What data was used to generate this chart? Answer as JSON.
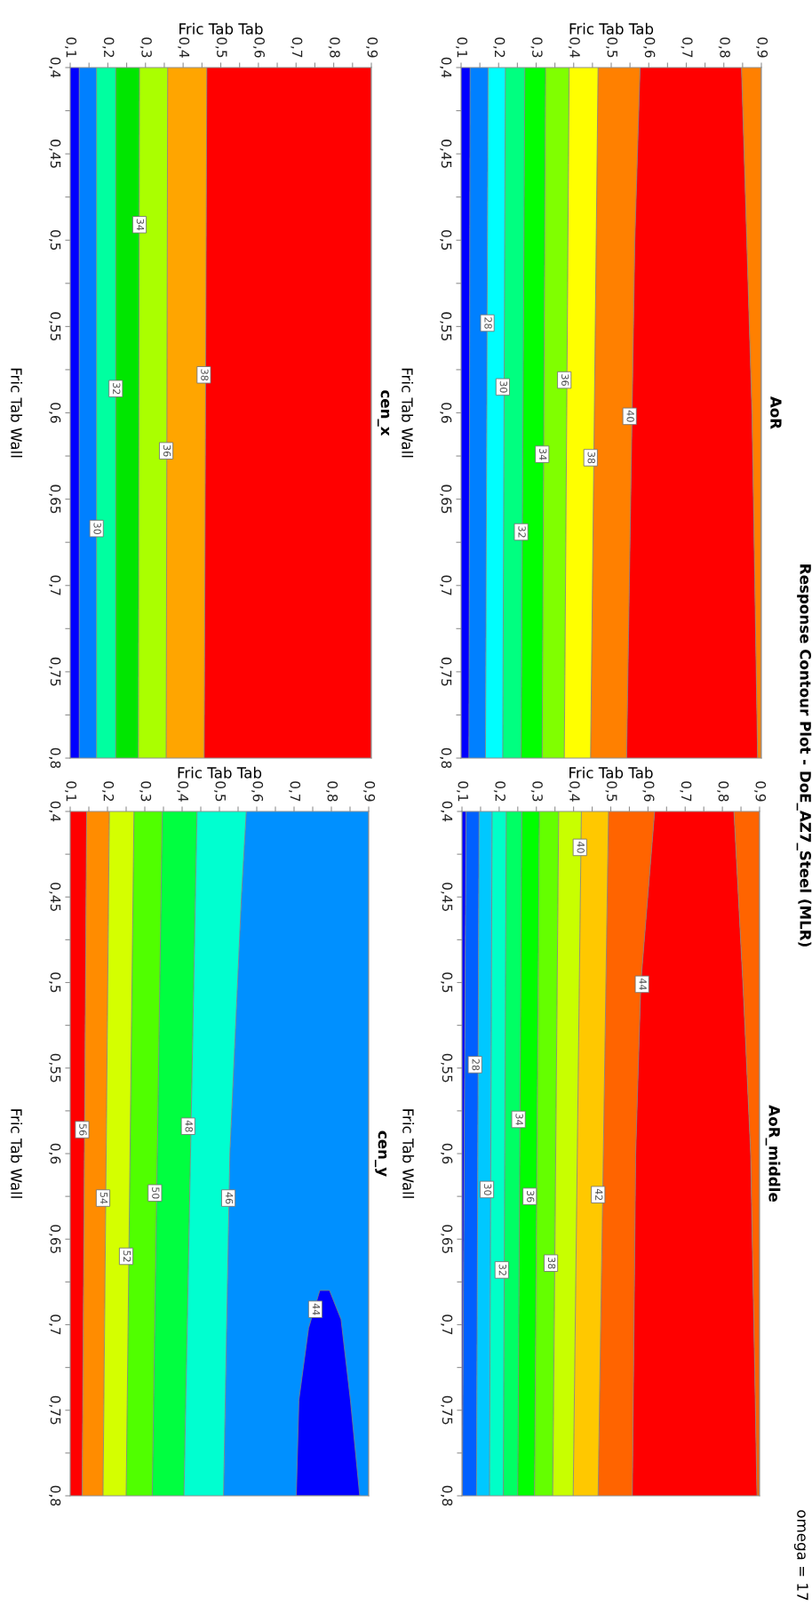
{
  "chart_data": [
    {
      "type": "area",
      "orientation": "horizontal",
      "title": "AoR",
      "xlabel": "Fric Tab Tab",
      "ylabel": "Fric Tab Wall",
      "xlim": [
        0.1,
        0.9
      ],
      "ylim": [
        0.8,
        0.4
      ],
      "xticks": [
        {
          "value": 0.1,
          "label": "0,1"
        },
        {
          "value": 0.15,
          "label": null
        },
        {
          "value": 0.2,
          "label": "0,2"
        },
        {
          "value": 0.25,
          "label": null
        },
        {
          "value": 0.3,
          "label": "0,3"
        },
        {
          "value": 0.35,
          "label": null
        },
        {
          "value": 0.4,
          "label": "0,4"
        },
        {
          "value": 0.45,
          "label": null
        },
        {
          "value": 0.5,
          "label": "0,5"
        },
        {
          "value": 0.55,
          "label": null
        },
        {
          "value": 0.6,
          "label": "0,6"
        },
        {
          "value": 0.65,
          "label": null
        },
        {
          "value": 0.7,
          "label": "0,7"
        },
        {
          "value": 0.75,
          "label": null
        },
        {
          "value": 0.8,
          "label": "0,8"
        },
        {
          "value": 0.85,
          "label": null
        },
        {
          "value": 0.9,
          "label": "0,9"
        }
      ],
      "yticks": [
        {
          "value": 0.4,
          "label": "0,4"
        },
        {
          "value": 0.425,
          "label": null
        },
        {
          "value": 0.45,
          "label": "0,45"
        },
        {
          "value": 0.475,
          "label": null
        },
        {
          "value": 0.5,
          "label": "0,5"
        },
        {
          "value": 0.525,
          "label": null
        },
        {
          "value": 0.55,
          "label": "0,55"
        },
        {
          "value": 0.575,
          "label": null
        },
        {
          "value": 0.6,
          "label": "0,6"
        },
        {
          "value": 0.625,
          "label": null
        },
        {
          "value": 0.65,
          "label": "0,65"
        },
        {
          "value": 0.675,
          "label": null
        },
        {
          "value": 0.7,
          "label": "0,7"
        },
        {
          "value": 0.725,
          "label": null
        },
        {
          "value": 0.75,
          "label": "0,75"
        },
        {
          "value": 0.775,
          "label": null
        },
        {
          "value": 0.8,
          "label": "0,8"
        }
      ],
      "series": [
        {
          "color": "#0000ff",
          "x": [
            0.4,
            0.8
          ],
          "values": [
            0.124,
            0.121
          ]
        },
        {
          "color": "#0080ff",
          "x": [
            0.4,
            0.8
          ],
          "values": [
            0.172,
            0.165
          ]
        },
        {
          "color": "#00ffff",
          "x": [
            0.4,
            0.8
          ],
          "values": [
            0.218,
            0.211
          ]
        },
        {
          "color": "#00ff80",
          "x": [
            0.4,
            0.8
          ],
          "values": [
            0.27,
            0.26
          ]
        },
        {
          "color": "#00ff00",
          "x": [
            0.4,
            0.8
          ],
          "values": [
            0.325,
            0.316
          ]
        },
        {
          "color": "#80ff00",
          "x": [
            0.4,
            0.8
          ],
          "values": [
            0.388,
            0.375
          ]
        },
        {
          "color": "#ffff00",
          "x": [
            0.4,
            0.8
          ],
          "values": [
            0.465,
            0.445
          ]
        },
        {
          "color": "#ff8000",
          "x": [
            0.4,
            0.5,
            0.8
          ],
          "values": [
            0.577,
            0.563,
            0.541
          ]
        },
        {
          "color": "#ff0000",
          "x": [
            0.4,
            0.5,
            0.6,
            0.8
          ],
          "values": [
            0.847,
            0.861,
            0.875,
            0.89
          ]
        },
        {
          "color": "#ff8000",
          "x": [
            0.4,
            0.5,
            0.6,
            0.8
          ],
          "values": [
            0.9,
            0.9,
            0.9,
            0.9
          ]
        }
      ],
      "annotations": [
        "Response Contour Plot - DoE_AZ7_Steel (MLR)",
        "omega = 17",
        {
          "text": "28",
          "x": 0.17,
          "y": 0.548
        },
        {
          "text": "30",
          "x": 0.211,
          "y": 0.585
        },
        {
          "text": "36",
          "x": 0.375,
          "y": 0.581
        },
        {
          "text": "40",
          "x": 0.549,
          "y": 0.602
        },
        {
          "text": "34",
          "x": 0.316,
          "y": 0.624
        },
        {
          "text": "38",
          "x": 0.445,
          "y": 0.626
        },
        {
          "text": "32",
          "x": 0.26,
          "y": 0.669
        }
      ]
    },
    {
      "type": "area",
      "orientation": "horizontal",
      "title": "AoR_middle",
      "xlabel": "Fric Tab Tab",
      "ylabel": "Fric Tab Wall",
      "xlim": [
        0.1,
        0.9
      ],
      "ylim": [
        0.8,
        0.4
      ],
      "xticks": [
        {
          "value": 0.1,
          "label": "0,1"
        },
        {
          "value": 0.15,
          "label": null
        },
        {
          "value": 0.2,
          "label": "0,2"
        },
        {
          "value": 0.25,
          "label": null
        },
        {
          "value": 0.3,
          "label": "0,3"
        },
        {
          "value": 0.35,
          "label": null
        },
        {
          "value": 0.4,
          "label": "0,4"
        },
        {
          "value": 0.45,
          "label": null
        },
        {
          "value": 0.5,
          "label": "0,5"
        },
        {
          "value": 0.55,
          "label": null
        },
        {
          "value": 0.6,
          "label": "0,6"
        },
        {
          "value": 0.65,
          "label": null
        },
        {
          "value": 0.7,
          "label": "0,7"
        },
        {
          "value": 0.75,
          "label": null
        },
        {
          "value": 0.8,
          "label": "0,8"
        },
        {
          "value": 0.85,
          "label": null
        },
        {
          "value": 0.9,
          "label": "0,9"
        }
      ],
      "yticks": [
        {
          "value": 0.4,
          "label": "0,4"
        },
        {
          "value": 0.425,
          "label": null
        },
        {
          "value": 0.45,
          "label": "0,45"
        },
        {
          "value": 0.475,
          "label": null
        },
        {
          "value": 0.5,
          "label": "0,5"
        },
        {
          "value": 0.525,
          "label": null
        },
        {
          "value": 0.55,
          "label": "0,55"
        },
        {
          "value": 0.575,
          "label": null
        },
        {
          "value": 0.6,
          "label": "0,6"
        },
        {
          "value": 0.625,
          "label": null
        },
        {
          "value": 0.65,
          "label": "0,65"
        },
        {
          "value": 0.675,
          "label": null
        },
        {
          "value": 0.7,
          "label": "0,7"
        },
        {
          "value": 0.725,
          "label": null
        },
        {
          "value": 0.75,
          "label": "0,75"
        },
        {
          "value": 0.775,
          "label": null
        },
        {
          "value": 0.8,
          "label": "0,8"
        }
      ],
      "series": [
        {
          "color": "#0000ff",
          "x": [
            0.4,
            0.8
          ],
          "values": [
            0.111,
            0.101
          ]
        },
        {
          "color": "#0060ff",
          "x": [
            0.4,
            0.8
          ],
          "values": [
            0.146,
            0.139
          ]
        },
        {
          "color": "#00c8ff",
          "x": [
            0.4,
            0.8
          ],
          "values": [
            0.181,
            0.174
          ]
        },
        {
          "color": "#00ffc8",
          "x": [
            0.4,
            0.8
          ],
          "values": [
            0.219,
            0.211
          ]
        },
        {
          "color": "#00ff64",
          "x": [
            0.4,
            0.8
          ],
          "values": [
            0.261,
            0.25
          ]
        },
        {
          "color": "#00ff00",
          "x": [
            0.4,
            0.8
          ],
          "values": [
            0.308,
            0.295
          ]
        },
        {
          "color": "#64ff00",
          "x": [
            0.4,
            0.8
          ],
          "values": [
            0.36,
            0.344
          ]
        },
        {
          "color": "#c8ff00",
          "x": [
            0.4,
            0.8
          ],
          "values": [
            0.421,
            0.399
          ]
        },
        {
          "color": "#ffc800",
          "x": [
            0.4,
            0.8
          ],
          "values": [
            0.494,
            0.466
          ]
        },
        {
          "color": "#ff6400",
          "x": [
            0.4,
            0.5,
            0.6,
            0.8
          ],
          "values": [
            0.618,
            0.581,
            0.567,
            0.558
          ]
        },
        {
          "color": "#ff0000",
          "x": [
            0.4,
            0.5,
            0.6,
            0.8
          ],
          "values": [
            0.831,
            0.855,
            0.876,
            0.893
          ]
        },
        {
          "color": "#ff6400",
          "x": [
            0.4,
            0.5,
            0.6,
            0.8
          ],
          "values": [
            0.9,
            0.9,
            0.9,
            0.9
          ]
        }
      ],
      "annotations": [
        {
          "text": "40",
          "x": 0.417,
          "y": 0.421
        },
        {
          "text": "44",
          "x": 0.584,
          "y": 0.501
        },
        {
          "text": "28",
          "x": 0.135,
          "y": 0.548
        },
        {
          "text": "34",
          "x": 0.252,
          "y": 0.58
        },
        {
          "text": "30",
          "x": 0.167,
          "y": 0.621
        },
        {
          "text": "36",
          "x": 0.282,
          "y": 0.625
        },
        {
          "text": "42",
          "x": 0.466,
          "y": 0.624
        },
        {
          "text": "32",
          "x": 0.207,
          "y": 0.668
        },
        {
          "text": "38",
          "x": 0.339,
          "y": 0.664
        }
      ]
    },
    {
      "type": "area",
      "orientation": "horizontal",
      "title": "cen_x",
      "xlabel": "Fric Tab Tab",
      "ylabel": "Fric Tab Wall",
      "xlim": [
        0.1,
        0.9
      ],
      "ylim": [
        0.8,
        0.4
      ],
      "xticks": [
        {
          "value": 0.1,
          "label": "0,1"
        },
        {
          "value": 0.15,
          "label": null
        },
        {
          "value": 0.2,
          "label": "0,2"
        },
        {
          "value": 0.25,
          "label": null
        },
        {
          "value": 0.3,
          "label": "0,3"
        },
        {
          "value": 0.35,
          "label": null
        },
        {
          "value": 0.4,
          "label": "0,4"
        },
        {
          "value": 0.45,
          "label": null
        },
        {
          "value": 0.5,
          "label": "0,5"
        },
        {
          "value": 0.55,
          "label": null
        },
        {
          "value": 0.6,
          "label": "0,6"
        },
        {
          "value": 0.65,
          "label": null
        },
        {
          "value": 0.7,
          "label": "0,7"
        },
        {
          "value": 0.75,
          "label": null
        },
        {
          "value": 0.8,
          "label": "0,8"
        },
        {
          "value": 0.85,
          "label": null
        },
        {
          "value": 0.9,
          "label": "0,9"
        }
      ],
      "yticks": [
        {
          "value": 0.4,
          "label": "0,4"
        },
        {
          "value": 0.425,
          "label": null
        },
        {
          "value": 0.45,
          "label": "0,45"
        },
        {
          "value": 0.475,
          "label": null
        },
        {
          "value": 0.5,
          "label": "0,5"
        },
        {
          "value": 0.525,
          "label": null
        },
        {
          "value": 0.55,
          "label": "0,55"
        },
        {
          "value": 0.575,
          "label": null
        },
        {
          "value": 0.6,
          "label": "0,6"
        },
        {
          "value": 0.625,
          "label": null
        },
        {
          "value": 0.65,
          "label": "0,65"
        },
        {
          "value": 0.675,
          "label": null
        },
        {
          "value": 0.7,
          "label": "0,7"
        },
        {
          "value": 0.725,
          "label": null
        },
        {
          "value": 0.75,
          "label": "0,75"
        },
        {
          "value": 0.775,
          "label": null
        },
        {
          "value": 0.8,
          "label": "0,8"
        }
      ],
      "series": [
        {
          "color": "#0000ff",
          "x": [
            0.4,
            0.8
          ],
          "values": [
            0.124,
            0.124
          ]
        },
        {
          "color": "#0080ff",
          "x": [
            0.4,
            0.8
          ],
          "values": [
            0.17,
            0.17
          ]
        },
        {
          "color": "#00ffa0",
          "x": [
            0.4,
            0.8
          ],
          "values": [
            0.221,
            0.221
          ]
        },
        {
          "color": "#00e600",
          "x": [
            0.4,
            0.8
          ],
          "values": [
            0.284,
            0.281
          ]
        },
        {
          "color": "#aaff00",
          "x": [
            0.4,
            0.8
          ],
          "values": [
            0.359,
            0.355
          ]
        },
        {
          "color": "#ffa500",
          "x": [
            0.4,
            0.8
          ],
          "values": [
            0.463,
            0.456
          ]
        },
        {
          "color": "#ff0000",
          "x": [
            0.4,
            0.8
          ],
          "values": [
            0.9,
            0.9
          ]
        }
      ],
      "annotations": [
        {
          "text": "34",
          "x": 0.284,
          "y": 0.491
        },
        {
          "text": "32",
          "x": 0.221,
          "y": 0.586
        },
        {
          "text": "38",
          "x": 0.455,
          "y": 0.578
        },
        {
          "text": "36",
          "x": 0.355,
          "y": 0.622
        },
        {
          "text": "30",
          "x": 0.17,
          "y": 0.667
        }
      ]
    },
    {
      "type": "area",
      "orientation": "horizontal",
      "title": "cen_y",
      "xlabel": "Fric Tab Tab",
      "ylabel": "Fric Tab Wall",
      "xlim": [
        0.1,
        0.9
      ],
      "ylim": [
        0.8,
        0.4
      ],
      "xticks": [
        {
          "value": 0.1,
          "label": "0,1"
        },
        {
          "value": 0.15,
          "label": null
        },
        {
          "value": 0.2,
          "label": "0,2"
        },
        {
          "value": 0.25,
          "label": null
        },
        {
          "value": 0.3,
          "label": "0,3"
        },
        {
          "value": 0.35,
          "label": null
        },
        {
          "value": 0.4,
          "label": "0,4"
        },
        {
          "value": 0.45,
          "label": null
        },
        {
          "value": 0.5,
          "label": "0,5"
        },
        {
          "value": 0.55,
          "label": null
        },
        {
          "value": 0.6,
          "label": "0,6"
        },
        {
          "value": 0.65,
          "label": null
        },
        {
          "value": 0.7,
          "label": "0,7"
        },
        {
          "value": 0.75,
          "label": null
        },
        {
          "value": 0.8,
          "label": "0,8"
        },
        {
          "value": 0.85,
          "label": null
        },
        {
          "value": 0.9,
          "label": "0,9"
        }
      ],
      "yticks": [
        {
          "value": 0.4,
          "label": "0,4"
        },
        {
          "value": 0.425,
          "label": null
        },
        {
          "value": 0.45,
          "label": "0,45"
        },
        {
          "value": 0.475,
          "label": null
        },
        {
          "value": 0.5,
          "label": "0,5"
        },
        {
          "value": 0.525,
          "label": null
        },
        {
          "value": 0.55,
          "label": "0,55"
        },
        {
          "value": 0.575,
          "label": null
        },
        {
          "value": 0.6,
          "label": "0,6"
        },
        {
          "value": 0.625,
          "label": null
        },
        {
          "value": 0.65,
          "label": "0,65"
        },
        {
          "value": 0.675,
          "label": null
        },
        {
          "value": 0.7,
          "label": "0,7"
        },
        {
          "value": 0.725,
          "label": null
        },
        {
          "value": 0.75,
          "label": "0,75"
        },
        {
          "value": 0.775,
          "label": null
        },
        {
          "value": 0.8,
          "label": "0,8"
        }
      ],
      "series": [
        {
          "color": "#ff0000",
          "x": [
            0.4,
            0.8
          ],
          "values": [
            0.144,
            0.132
          ]
        },
        {
          "color": "#ff8c00",
          "x": [
            0.4,
            0.8
          ],
          "values": [
            0.205,
            0.188
          ]
        },
        {
          "color": "#d4ff00",
          "x": [
            0.4,
            0.8
          ],
          "values": [
            0.271,
            0.25
          ]
        },
        {
          "color": "#50ff00",
          "x": [
            0.4,
            0.8
          ],
          "values": [
            0.347,
            0.32
          ]
        },
        {
          "color": "#00ff40",
          "x": [
            0.4,
            0.8
          ],
          "values": [
            0.44,
            0.405
          ]
        },
        {
          "color": "#00ffd0",
          "x": [
            0.4,
            0.45,
            0.6,
            0.8
          ],
          "values": [
            0.572,
            0.559,
            0.528,
            0.511
          ]
        },
        {
          "color": "#0090ff",
          "x": [
            0.4,
            0.45,
            0.6,
            0.8
          ],
          "values": [
            0.9,
            0.9,
            0.9,
            0.9
          ]
        },
        {
          "color": "#0000ff",
          "x": [
            0.68,
            0.68,
            0.697,
            0.744,
            0.8,
            0.8,
            0.744,
            0.702
          ],
          "values": [
            0.769,
            0.795,
            0.826,
            0.851,
            0.876,
            0.706,
            0.713,
            0.739
          ]
        }
      ],
      "annotations": [
        {
          "text": "56",
          "x": 0.132,
          "y": 0.586
        },
        {
          "text": "54",
          "x": 0.188,
          "y": 0.626
        },
        {
          "text": "50",
          "x": 0.327,
          "y": 0.623
        },
        {
          "text": "48",
          "x": 0.416,
          "y": 0.584
        },
        {
          "text": "46",
          "x": 0.524,
          "y": 0.626
        },
        {
          "text": "52",
          "x": 0.25,
          "y": 0.66
        },
        {
          "text": "44",
          "x": 0.757,
          "y": 0.691
        }
      ]
    }
  ]
}
